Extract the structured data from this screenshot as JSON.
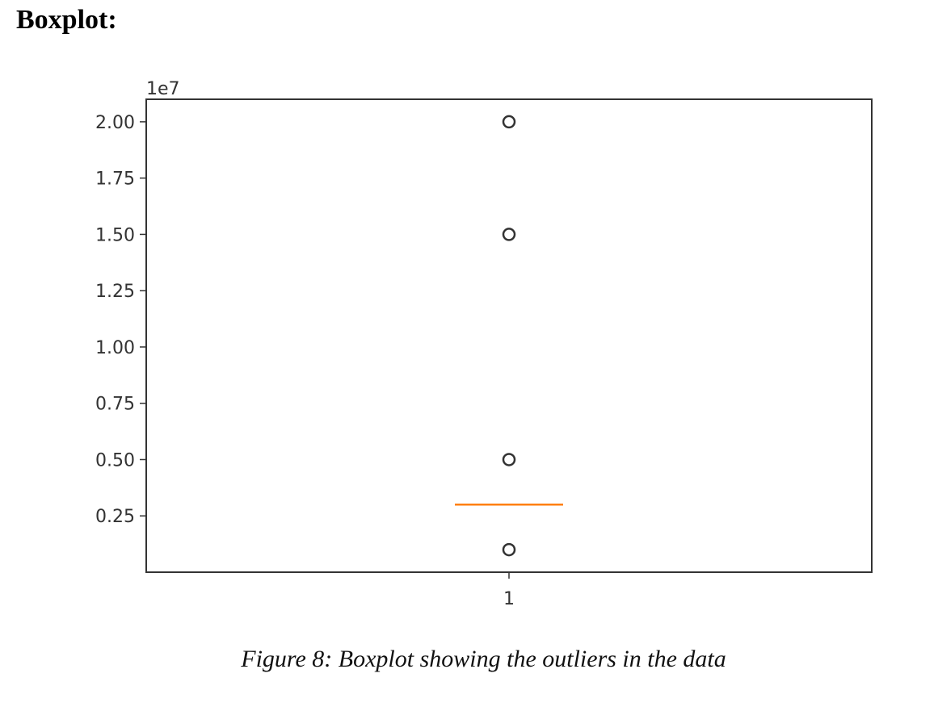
{
  "heading": "Boxplot:",
  "caption": "Figure 8: Boxplot showing the outliers in the data",
  "chart_data": {
    "type": "boxplot",
    "offset_label": "1e7",
    "categories": [
      "1"
    ],
    "ylim": [
      0.0,
      2.1
    ],
    "yticks": [
      0.25,
      0.5,
      0.75,
      1.0,
      1.25,
      1.5,
      1.75,
      2.0
    ],
    "ytick_labels": [
      "0.25",
      "0.50",
      "0.75",
      "1.00",
      "1.25",
      "1.50",
      "1.75",
      "2.00"
    ],
    "median": 0.3,
    "outliers": [
      2.0,
      1.5,
      0.5,
      0.1
    ],
    "colors": {
      "median": "#ff7f0e",
      "outlier": "#333333",
      "axes": "#333333"
    }
  }
}
